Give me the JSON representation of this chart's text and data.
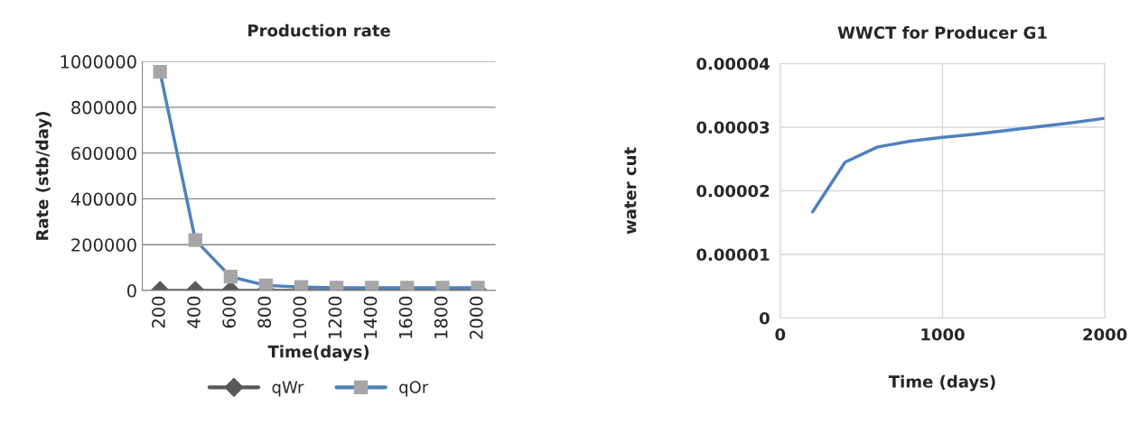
{
  "chart_data": [
    {
      "type": "line",
      "title": "Production rate",
      "xlabel": "Time(days)",
      "ylabel": "Rate (stb/day)",
      "categories": [
        "200",
        "400",
        "600",
        "800",
        "1000",
        "1200",
        "1400",
        "1600",
        "1800",
        "2000"
      ],
      "series": [
        {
          "name": "qWr",
          "color": "#595959",
          "marker": "diamond",
          "values": [
            0,
            0,
            0,
            0,
            0,
            0,
            0,
            0,
            0,
            0
          ]
        },
        {
          "name": "qOr",
          "color": "#4f81bd",
          "marker": "square",
          "values": [
            955000,
            220000,
            60000,
            22000,
            15000,
            12000,
            12000,
            12000,
            12000,
            12000
          ]
        }
      ],
      "ylim": [
        0,
        1000000
      ],
      "yticks": [
        0,
        200000,
        400000,
        600000,
        800000,
        1000000
      ],
      "grid": "y",
      "legend": "bottom"
    },
    {
      "type": "line",
      "title": "WWCT for Producer G1",
      "xlabel": "Time (days)",
      "ylabel": "water cut",
      "x": [
        200,
        400,
        600,
        800,
        1000,
        1200,
        1400,
        1600,
        1800,
        2000
      ],
      "series": [
        {
          "color": "#4f81bd",
          "values": [
            1.67e-05,
            2.45e-05,
            2.69e-05,
            2.78e-05,
            2.84e-05,
            2.89e-05,
            2.95e-05,
            3.01e-05,
            3.07e-05,
            3.14e-05
          ]
        }
      ],
      "xlim": [
        0,
        2000
      ],
      "xticks": [
        0,
        1000,
        2000
      ],
      "ylim": [
        0,
        4e-05
      ],
      "yticks": [
        0,
        {
          "value": 1e-05,
          "label": "0.00001"
        },
        {
          "value": 2e-05,
          "label": "0.00002"
        },
        {
          "value": 3e-05,
          "label": "0.00003"
        },
        {
          "value": 4e-05,
          "label": "0.00004"
        }
      ],
      "grid": true,
      "legend": false
    }
  ]
}
